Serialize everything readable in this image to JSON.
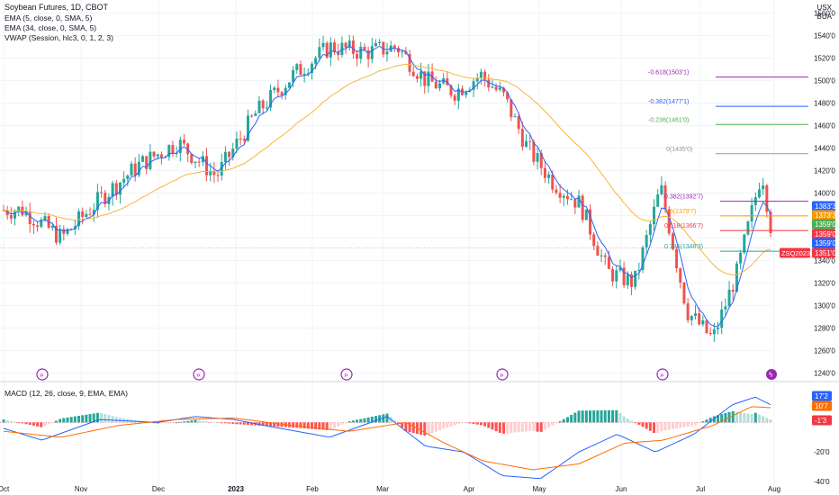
{
  "chart_data": {
    "type": "candlestick",
    "title": "Soybean Futures, 1D, CBOT",
    "currency": [
      "USX",
      "BUA"
    ],
    "indicators": {
      "ema_fast": "EMA (5, close, 0, SMA, 5)",
      "ema_slow": "EMA (34, close, 0, SMA, 5)",
      "vwap": "VWAP (Session, hlc3, 0, 1, 2, 3)"
    },
    "price_axis": {
      "ticks": [
        "1560'0",
        "1540'0",
        "1520'0",
        "1500'0",
        "1480'0",
        "1460'0",
        "1440'0",
        "1420'0",
        "1400'0",
        "1380'0",
        "1360'0",
        "1340'0",
        "1320'0",
        "1300'0",
        "1280'0",
        "1260'0",
        "1240'0"
      ],
      "ylim": [
        1234,
        1562
      ]
    },
    "time_axis": {
      "labels": [
        "Oct",
        "Nov",
        "Dec",
        "2023",
        "Feb",
        "Mar",
        "Apr",
        "May",
        "Jun",
        "Jul",
        "Aug"
      ]
    },
    "price_key_points": [
      [
        "Oct",
        1385
      ],
      [
        "Oct",
        1360
      ],
      [
        "Nov",
        1395
      ],
      [
        "Nov",
        1425
      ],
      [
        "Dec",
        1445
      ],
      [
        "Dec",
        1415
      ],
      [
        "2023",
        1470
      ],
      [
        "2023",
        1505
      ],
      [
        "Feb",
        1530
      ],
      [
        "Feb",
        1525
      ],
      [
        "Mar",
        1530
      ],
      [
        "Mar",
        1500
      ],
      [
        "Mar",
        1490
      ],
      [
        "Apr",
        1505
      ],
      [
        "Apr",
        1485
      ],
      [
        "Apr",
        1440
      ],
      [
        "May",
        1410
      ],
      [
        "May",
        1390
      ],
      [
        "May",
        1330
      ],
      [
        "Jun",
        1320
      ],
      [
        "Jun",
        1405
      ],
      [
        "Jun",
        1295
      ],
      [
        "Jul",
        1270
      ],
      [
        "Jul",
        1330
      ],
      [
        "Jul",
        1420
      ],
      [
        "Aug",
        1351
      ]
    ],
    "fibonacci": [
      {
        "label": "-0.618(1503'1)",
        "value": 1503.1,
        "color": "#9c27b0"
      },
      {
        "label": "-0.382(1477'1)",
        "value": 1477.1,
        "color": "#2962ff"
      },
      {
        "label": "-0.236(1461'0)",
        "value": 1461.0,
        "color": "#4caf50"
      },
      {
        "label": "0(1435'0)",
        "value": 1435.0,
        "color": "#9598a1"
      },
      {
        "label": "0.382(1392'7)",
        "value": 1392.7,
        "color": "#9c27b0"
      },
      {
        "label": "0.5(1379'7)",
        "value": 1379.7,
        "color": "#ff9800"
      },
      {
        "label": "0.618(1366'7)",
        "value": 1366.7,
        "color": "#f23645"
      },
      {
        "label": "0.786(1348'3)",
        "value": 1348.3,
        "color": "#26a69a"
      }
    ],
    "price_labels": [
      {
        "text": "1383'3",
        "value": 1383.3,
        "color": "#2962ff"
      },
      {
        "text": "1373'3",
        "value": 1373.3,
        "color": "#ff9800"
      },
      {
        "text": "1359'0",
        "value": 1359.0,
        "color": "#4caf50"
      },
      {
        "text": "1359'0",
        "value": 1359.0,
        "color": "#f23645"
      },
      {
        "text": "1359'0",
        "value": 1359.0,
        "color": "#2962ff"
      },
      {
        "text": "1351'0",
        "value": 1351.0,
        "color": "#f23645"
      }
    ],
    "symbol_tag": "ZSQ2023",
    "last_price": 1351.0,
    "macd": {
      "title": "MACD (12, 26, close, 9, EMA, EMA)",
      "ticks": [
        "-20'0",
        "-40'0"
      ],
      "ylim": [
        -43,
        24
      ],
      "labels": [
        {
          "text": "17'2",
          "value": 17.2,
          "color": "#2962ff"
        },
        {
          "text": "10'7",
          "value": 10.7,
          "color": "#ff6d00"
        },
        {
          "text": "-1'3",
          "value": -1.3,
          "color": "#f23645"
        }
      ],
      "macd_key_points": [
        [
          0,
          -4
        ],
        [
          10,
          -12
        ],
        [
          25,
          2
        ],
        [
          40,
          0
        ],
        [
          50,
          4
        ],
        [
          60,
          2
        ],
        [
          70,
          -3
        ],
        [
          85,
          -10
        ],
        [
          100,
          4
        ],
        [
          110,
          -16
        ],
        [
          120,
          -20
        ],
        [
          130,
          -36
        ],
        [
          140,
          -38
        ],
        [
          150,
          -20
        ],
        [
          160,
          -8
        ],
        [
          170,
          -20
        ],
        [
          180,
          -8
        ],
        [
          190,
          12
        ],
        [
          196,
          17.2
        ],
        [
          200,
          12
        ]
      ],
      "signal_key_points": [
        [
          0,
          -6
        ],
        [
          15,
          -10
        ],
        [
          30,
          -2
        ],
        [
          45,
          2
        ],
        [
          60,
          3
        ],
        [
          75,
          -2
        ],
        [
          90,
          -6
        ],
        [
          105,
          0
        ],
        [
          115,
          -14
        ],
        [
          125,
          -26
        ],
        [
          138,
          -32
        ],
        [
          150,
          -28
        ],
        [
          162,
          -14
        ],
        [
          172,
          -12
        ],
        [
          185,
          -2
        ],
        [
          195,
          10.7
        ],
        [
          200,
          10
        ]
      ]
    }
  }
}
